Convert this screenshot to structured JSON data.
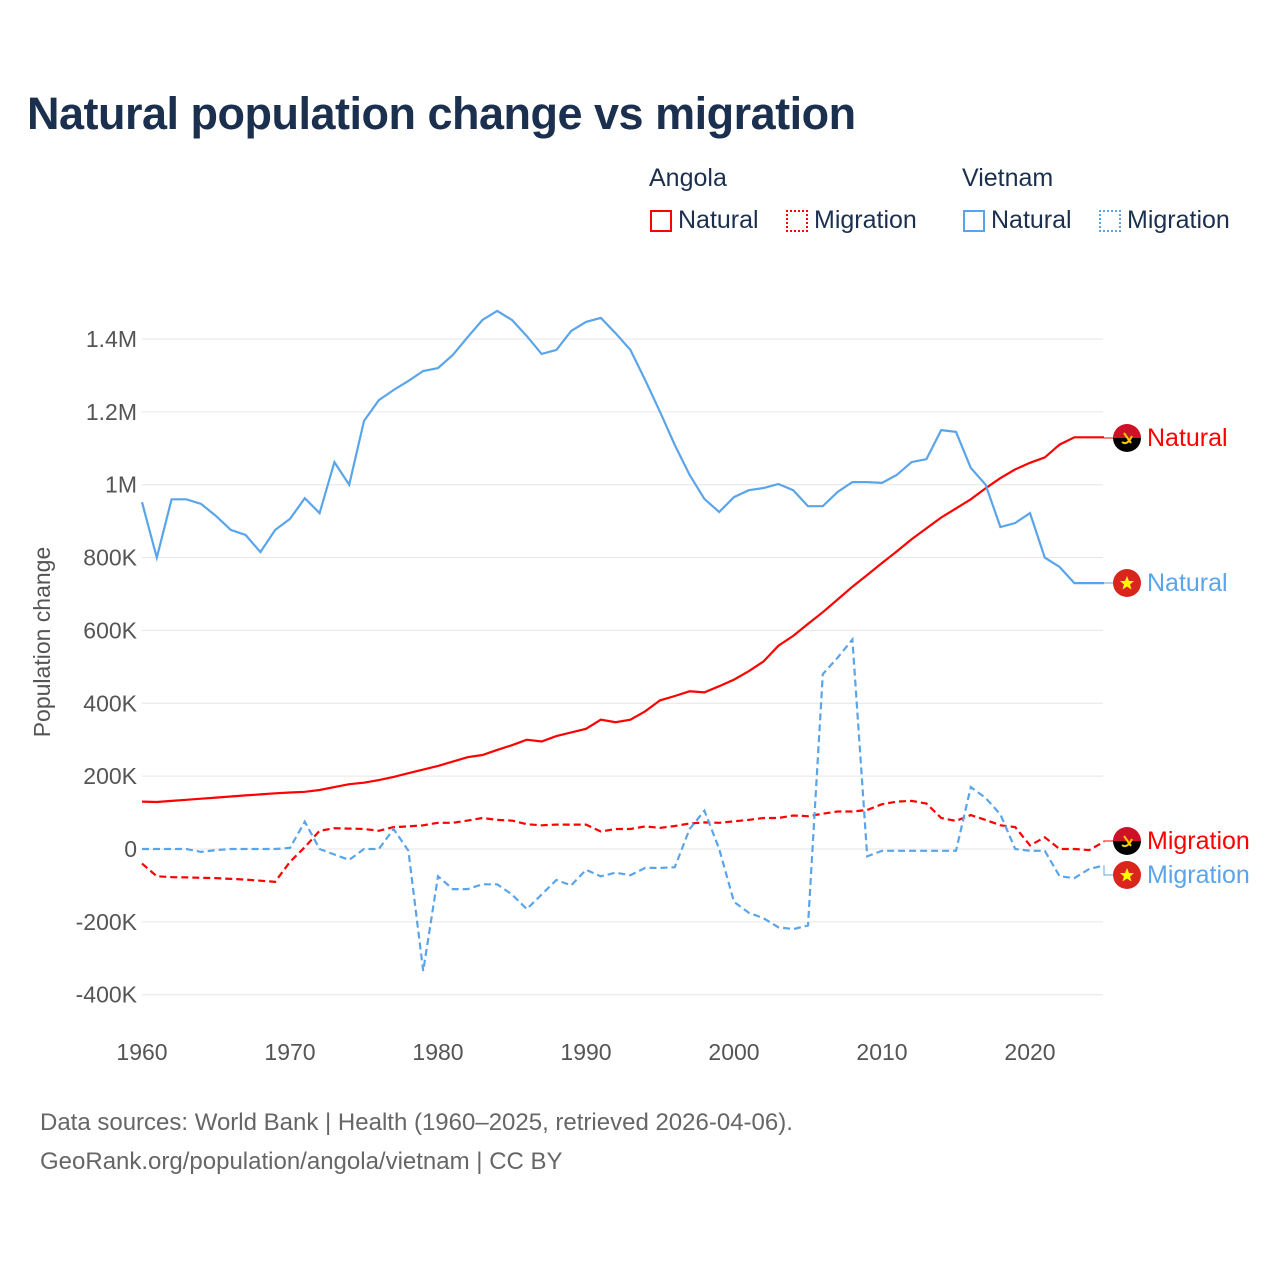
{
  "title": "Natural population change vs migration",
  "legend": {
    "groups": [
      {
        "name": "Angola",
        "items": [
          {
            "label": "Natural",
            "style": "solid",
            "color": "#ff0000"
          },
          {
            "label": "Migration",
            "style": "dotted",
            "color": "#ff0000"
          }
        ]
      },
      {
        "name": "Vietnam",
        "items": [
          {
            "label": "Natural",
            "style": "solid",
            "color": "#5aa5ea"
          },
          {
            "label": "Migration",
            "style": "dotted",
            "color": "#5aa5ea"
          }
        ]
      }
    ]
  },
  "sources": {
    "line1": "Data sources: World Bank | Health (1960–2025, retrieved 2026-04-06).",
    "line2": "GeoRank.org/population/angola/vietnam | CC BY"
  },
  "chart_data": {
    "type": "line",
    "title": "Natural population change vs migration",
    "xlabel": "",
    "ylabel": "Population change",
    "xlim": [
      1960,
      2025
    ],
    "ylim": [
      -400000,
      1400000
    ],
    "xticks": [
      {
        "v": 1960,
        "label": "1960"
      },
      {
        "v": 1970,
        "label": "1970"
      },
      {
        "v": 1980,
        "label": "1980"
      },
      {
        "v": 1990,
        "label": "1990"
      },
      {
        "v": 2000,
        "label": "2000"
      },
      {
        "v": 2010,
        "label": "2010"
      },
      {
        "v": 2020,
        "label": "2020"
      }
    ],
    "yticks": [
      {
        "v": -400000,
        "label": "-400K"
      },
      {
        "v": -200000,
        "label": "-200K"
      },
      {
        "v": 0,
        "label": "0"
      },
      {
        "v": 200000,
        "label": "200K"
      },
      {
        "v": 400000,
        "label": "400K"
      },
      {
        "v": 600000,
        "label": "600K"
      },
      {
        "v": 800000,
        "label": "800K"
      },
      {
        "v": 1000000,
        "label": "1M"
      },
      {
        "v": 1200000,
        "label": "1.2M"
      },
      {
        "v": 1400000,
        "label": "1.4M"
      }
    ],
    "grid": true,
    "x_start": 1960,
    "series": [
      {
        "name": "Angola Natural",
        "end_label": "Natural",
        "country": "angola",
        "color": "#ff0000",
        "dash": false,
        "values_k": [
          130,
          129,
          132,
          135,
          138,
          141,
          144,
          147,
          150,
          153,
          155,
          157,
          162,
          170,
          178,
          182,
          189,
          198,
          208,
          218,
          228,
          240,
          252,
          258,
          272,
          285,
          300,
          295,
          310,
          320,
          330,
          355,
          348,
          355,
          378,
          408,
          420,
          433,
          430,
          447,
          465,
          488,
          515,
          558,
          585,
          618,
          650,
          685,
          720,
          752,
          785,
          817,
          850,
          880,
          910,
          935,
          960,
          990,
          1018,
          1042,
          1060,
          1075,
          1110,
          1130,
          1130,
          1130
        ]
      },
      {
        "name": "Vietnam Natural",
        "end_label": "Natural",
        "country": "vietnam",
        "color": "#5aa5ea",
        "dash": false,
        "values_k": [
          952,
          800,
          960,
          960,
          947,
          914,
          876,
          862,
          815,
          876,
          906,
          963,
          922,
          1062,
          1000,
          1175,
          1232,
          1260,
          1285,
          1312,
          1320,
          1356,
          1405,
          1452,
          1477,
          1452,
          1408,
          1359,
          1370,
          1422,
          1447,
          1458,
          1416,
          1370,
          1287,
          1200,
          1109,
          1027,
          961,
          925,
          966,
          985,
          991,
          1002,
          985,
          941,
          941,
          980,
          1007,
          1007,
          1005,
          1027,
          1062,
          1070,
          1150,
          1145,
          1046,
          1000,
          884,
          895,
          922,
          800,
          774,
          730,
          730,
          730
        ]
      },
      {
        "name": "Angola Migration",
        "end_label": "Migration",
        "country": "angola",
        "color": "#ff0000",
        "dash": true,
        "values_k": [
          -40,
          -75,
          -77,
          -78,
          -79,
          -80,
          -82,
          -84,
          -87,
          -90,
          -35,
          5,
          50,
          57,
          56,
          55,
          50,
          60,
          62,
          65,
          72,
          72,
          78,
          85,
          80,
          78,
          68,
          65,
          67,
          67,
          67,
          48,
          55,
          55,
          62,
          58,
          63,
          70,
          73,
          72,
          76,
          80,
          85,
          85,
          92,
          90,
          97,
          103,
          103,
          107,
          123,
          130,
          132,
          125,
          85,
          77,
          93,
          80,
          65,
          60,
          10,
          32,
          0,
          0,
          -3,
          20
        ]
      },
      {
        "name": "Vietnam Migration",
        "end_label": "Migration",
        "country": "vietnam",
        "color": "#5aa5ea",
        "dash": true,
        "values_k": [
          0,
          0,
          0,
          0,
          -8,
          -3,
          0,
          0,
          0,
          0,
          3,
          75,
          0,
          -15,
          -30,
          0,
          0,
          55,
          -5,
          -335,
          -75,
          -110,
          -110,
          -97,
          -97,
          -125,
          -165,
          -125,
          -85,
          -100,
          -57,
          -75,
          -65,
          -72,
          -52,
          -52,
          -50,
          55,
          105,
          0,
          -145,
          -175,
          -190,
          -215,
          -220,
          -210,
          480,
          525,
          575,
          -20,
          -5,
          -5,
          -5,
          -5,
          -5,
          -5,
          170,
          140,
          95,
          0,
          -5,
          -5,
          -75,
          -80,
          -55,
          -45
        ]
      }
    ]
  }
}
